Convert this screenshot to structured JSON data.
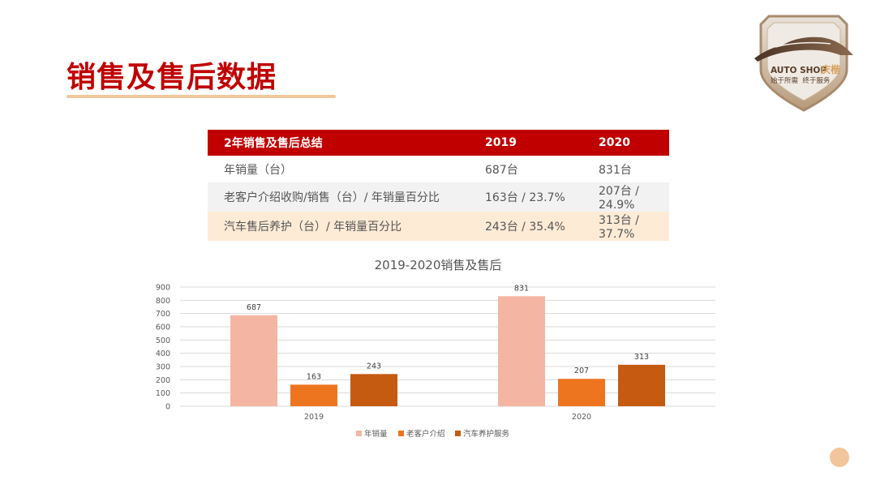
{
  "page": {
    "title": "销售及售后数据"
  },
  "logo": {
    "brand": "AUTO SHOP",
    "brand_cn": "庆楷",
    "slogan": "始于所需  终于服务"
  },
  "summary_table": {
    "headers": [
      "2年销售及售后总结",
      "2019",
      "2020"
    ],
    "rows": [
      [
        "年销量（台）",
        "687台",
        "831台"
      ],
      [
        "老客户介绍收购/销售（台）/ 年销量百分比",
        "163台 / 23.7%",
        "207台 / 24.9%"
      ],
      [
        "汽车售后养护（台）/ 年销量百分比",
        "243台 / 35.4%",
        "313台 / 37.7%"
      ]
    ]
  },
  "colors": {
    "accent_red": "#c00000",
    "series": [
      "#f4b6a2",
      "#ee7520",
      "#c55a11"
    ]
  },
  "chart_data": {
    "type": "bar",
    "title": "2019-2020销售及售后",
    "categories": [
      "2019",
      "2020"
    ],
    "series": [
      {
        "name": "年销量",
        "values": [
          687,
          831
        ]
      },
      {
        "name": "老客户介绍",
        "values": [
          163,
          207
        ]
      },
      {
        "name": "汽车养护服务",
        "values": [
          243,
          313
        ]
      }
    ],
    "ylim": [
      0,
      900
    ],
    "yticks": [
      0,
      100,
      200,
      300,
      400,
      500,
      600,
      700,
      800,
      900
    ],
    "grid": true,
    "legend_position": "bottom"
  }
}
